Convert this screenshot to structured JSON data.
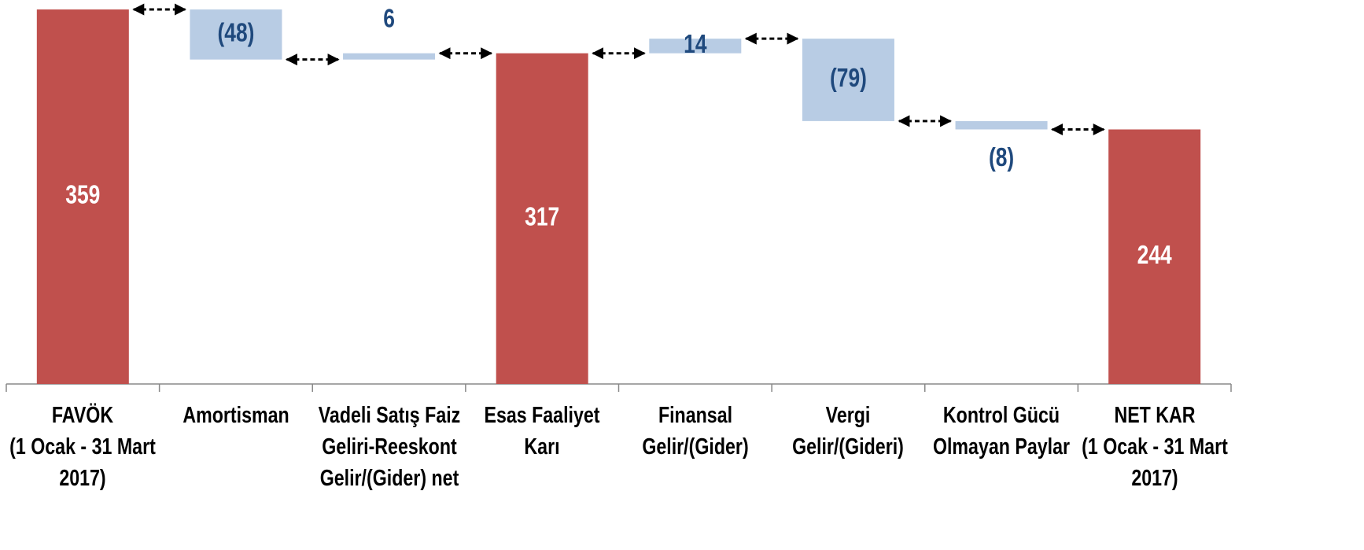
{
  "chart_data": {
    "type": "waterfall",
    "categories": [
      "FAVÖK\n(1 Ocak - 31 Mart\n2017)",
      "Amortisman",
      "Vadeli Satış Faiz\nGeliri-Reeskont\nGelir/(Gider) net",
      "Esas Faaliyet Karı",
      "Finansal\nGelir/(Gider)",
      "Vergi\nGelir/(Gideri)",
      "Kontrol Gücü\nOlmayan Paylar",
      "NET KAR\n(1 Ocak - 31 Mart\n2017)"
    ],
    "values": [
      359,
      -48,
      6,
      317,
      14,
      -79,
      -8,
      244
    ],
    "value_labels": [
      "359",
      "(48)",
      "6",
      "317",
      "14",
      "(79)",
      "(8)",
      "244"
    ],
    "totals": [
      0,
      3,
      7
    ],
    "total_color": "#c0504d",
    "delta_color": "#b8cce4",
    "delta_label_color": "#1f497d",
    "ylim": [
      0,
      360
    ]
  }
}
